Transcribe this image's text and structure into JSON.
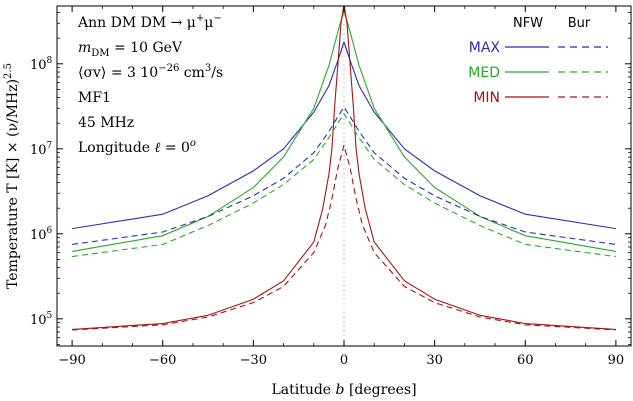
{
  "chart_data": {
    "type": "line",
    "xlabel_parts": [
      "Latitude ",
      "b",
      " [degrees]"
    ],
    "ylabel": "Temperature T [K] × (ν/MHz)",
    "ylabel_exp": "2.5",
    "xlim": [
      -95,
      95
    ],
    "ylim_log10": [
      4.68,
      8.68
    ],
    "x_ticks": [
      -90,
      -60,
      -30,
      0,
      30,
      60,
      90
    ],
    "x_tick_labels": [
      "−90",
      "−60",
      "−30",
      "0",
      "30",
      "60",
      "90"
    ],
    "y_ticks": [
      {
        "base": "10",
        "exp": "5",
        "value": 100000
      },
      {
        "base": "10",
        "exp": "6",
        "value": 1000000
      },
      {
        "base": "10",
        "exp": "7",
        "value": 10000000
      },
      {
        "base": "10",
        "exp": "8",
        "value": 100000000
      }
    ],
    "center_line_x": 0,
    "annotation": {
      "title": "Ann DM DM → μ",
      "title_sup1": "+",
      "title_mid": "μ",
      "title_sup2": "−",
      "mass_sym": "m",
      "mass_sub": "DM",
      "mass_val": " = 10 GeV",
      "sigma_pre": "⟨σv⟩ = 3 10",
      "sigma_exp": "−26",
      "sigma_post": " cm",
      "sigma_exp2": "3",
      "sigma_end": "/s",
      "model": "MF1",
      "freq": "45 MHz",
      "longitude_pre": "Longitude ",
      "longitude_sym": "ℓ",
      "longitude_mid": " = 0",
      "longitude_sup": "o"
    },
    "legend": {
      "col1": "NFW",
      "col2": "Bur",
      "entries": [
        {
          "label": "MAX",
          "color": "#2b2fb8"
        },
        {
          "label": "MED",
          "color": "#27ab27"
        },
        {
          "label": "MIN",
          "color": "#a31414"
        }
      ]
    },
    "series": [
      {
        "name": "MAX NFW",
        "color": "#2b2fb8",
        "dash": false,
        "points": [
          [
            -90,
            1150000.0
          ],
          [
            -60,
            1700000.0
          ],
          [
            -45,
            2800000.0
          ],
          [
            -30,
            5500000.0
          ],
          [
            -20,
            10000000.0
          ],
          [
            -10,
            27000000.0
          ],
          [
            -5,
            55000000.0
          ],
          [
            -2,
            110000000.0
          ],
          [
            0,
            180000000.0
          ],
          [
            2,
            110000000.0
          ],
          [
            5,
            55000000.0
          ],
          [
            10,
            27000000.0
          ],
          [
            20,
            10000000.0
          ],
          [
            30,
            5500000.0
          ],
          [
            45,
            2800000.0
          ],
          [
            60,
            1700000.0
          ],
          [
            90,
            1150000.0
          ]
        ]
      },
      {
        "name": "MED NFW",
        "color": "#27ab27",
        "dash": false,
        "points": [
          [
            -90,
            620000.0
          ],
          [
            -60,
            950000.0
          ],
          [
            -45,
            1600000.0
          ],
          [
            -30,
            3500000.0
          ],
          [
            -20,
            8000000.0
          ],
          [
            -10,
            30000000.0
          ],
          [
            -5,
            95000000.0
          ],
          [
            -2,
            240000000.0
          ],
          [
            0,
            420000000.0
          ],
          [
            2,
            240000000.0
          ],
          [
            5,
            95000000.0
          ],
          [
            10,
            30000000.0
          ],
          [
            20,
            8000000.0
          ],
          [
            30,
            3500000.0
          ],
          [
            45,
            1600000.0
          ],
          [
            60,
            950000.0
          ],
          [
            90,
            620000.0
          ]
        ]
      },
      {
        "name": "MIN NFW",
        "color": "#a31414",
        "dash": false,
        "points": [
          [
            -90,
            75000.0
          ],
          [
            -60,
            88000.0
          ],
          [
            -45,
            110000.0
          ],
          [
            -30,
            170000.0
          ],
          [
            -20,
            280000.0
          ],
          [
            -10,
            800000.0
          ],
          [
            -7,
            2000000.0
          ],
          [
            -5,
            5000000.0
          ],
          [
            -4,
            10000000.0
          ],
          [
            -3,
            35000000.0
          ],
          [
            -2,
            100000000.0
          ],
          [
            -1,
            300000000.0
          ],
          [
            0,
            500000000.0
          ],
          [
            1,
            300000000.0
          ],
          [
            2,
            100000000.0
          ],
          [
            3,
            35000000.0
          ],
          [
            4,
            10000000.0
          ],
          [
            5,
            5000000.0
          ],
          [
            7,
            2000000.0
          ],
          [
            10,
            800000.0
          ],
          [
            20,
            280000.0
          ],
          [
            30,
            170000.0
          ],
          [
            45,
            110000.0
          ],
          [
            60,
            88000.0
          ],
          [
            90,
            75000.0
          ]
        ]
      },
      {
        "name": "MAX Bur",
        "color": "#2b2fb8",
        "dash": true,
        "points": [
          [
            -90,
            750000.0
          ],
          [
            -60,
            1050000.0
          ],
          [
            -45,
            1600000.0
          ],
          [
            -30,
            2800000.0
          ],
          [
            -20,
            4500000.0
          ],
          [
            -10,
            9000000.0
          ],
          [
            -5,
            16000000.0
          ],
          [
            -2,
            24000000.0
          ],
          [
            0,
            31000000.0
          ],
          [
            2,
            24000000.0
          ],
          [
            5,
            16000000.0
          ],
          [
            10,
            9000000.0
          ],
          [
            20,
            4500000.0
          ],
          [
            30,
            2800000.0
          ],
          [
            45,
            1600000.0
          ],
          [
            60,
            1050000.0
          ],
          [
            90,
            750000.0
          ]
        ]
      },
      {
        "name": "MED Bur",
        "color": "#27ab27",
        "dash": true,
        "points": [
          [
            -90,
            540000.0
          ],
          [
            -60,
            750000.0
          ],
          [
            -45,
            1250000.0
          ],
          [
            -30,
            2300000.0
          ],
          [
            -20,
            3800000.0
          ],
          [
            -10,
            7500000.0
          ],
          [
            -5,
            13500000.0
          ],
          [
            -2,
            20000000.0
          ],
          [
            0,
            26000000.0
          ],
          [
            2,
            20000000.0
          ],
          [
            5,
            13500000.0
          ],
          [
            10,
            7500000.0
          ],
          [
            20,
            3800000.0
          ],
          [
            30,
            2300000.0
          ],
          [
            45,
            1250000.0
          ],
          [
            60,
            750000.0
          ],
          [
            90,
            540000.0
          ]
        ]
      },
      {
        "name": "MIN Bur",
        "color": "#a31414",
        "dash": true,
        "points": [
          [
            -90,
            74000.0
          ],
          [
            -60,
            85000.0
          ],
          [
            -45,
            105000.0
          ],
          [
            -30,
            155000.0
          ],
          [
            -20,
            240000.0
          ],
          [
            -10,
            600000.0
          ],
          [
            -6,
            1300000.0
          ],
          [
            -4,
            2600000.0
          ],
          [
            -2,
            6000000.0
          ],
          [
            0,
            11000000.0
          ],
          [
            2,
            6000000.0
          ],
          [
            4,
            2600000.0
          ],
          [
            6,
            1300000.0
          ],
          [
            10,
            600000.0
          ],
          [
            20,
            240000.0
          ],
          [
            30,
            155000.0
          ],
          [
            45,
            105000.0
          ],
          [
            60,
            85000.0
          ],
          [
            90,
            74000.0
          ]
        ]
      }
    ]
  }
}
